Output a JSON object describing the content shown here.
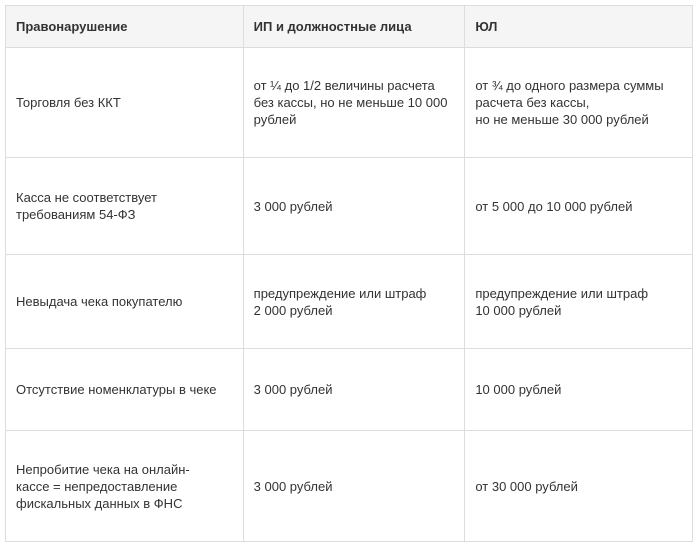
{
  "headers": [
    "Правонарушение",
    "ИП и должностные лица",
    "ЮЛ"
  ],
  "rows": [
    [
      "Торговля без ККТ",
      "от ¼ до 1/2 величины расчета\nбез кассы, но не меньше 10 000\nрублей",
      "от ¾ до одного размера суммы\nрасчета без кассы,\nно не меньше 30 000 рублей"
    ],
    [
      "Касса не соответствует\nтребованиям 54-ФЗ",
      "3 000 рублей",
      "от 5 000 до 10 000 рублей"
    ],
    [
      "Невыдача чека покупателю",
      "предупреждение или штраф\n2 000 рублей",
      "предупреждение или штраф\n10 000 рублей"
    ],
    [
      "Отсутствие номенклатуры в чеке",
      "3 000 рублей",
      "10 000 рублей"
    ],
    [
      "Непробитие чека на онлайн-\nкассе = непредоставление\nфискальных данных в ФНС",
      "3 000 рублей",
      "от 30 000 рублей"
    ]
  ]
}
